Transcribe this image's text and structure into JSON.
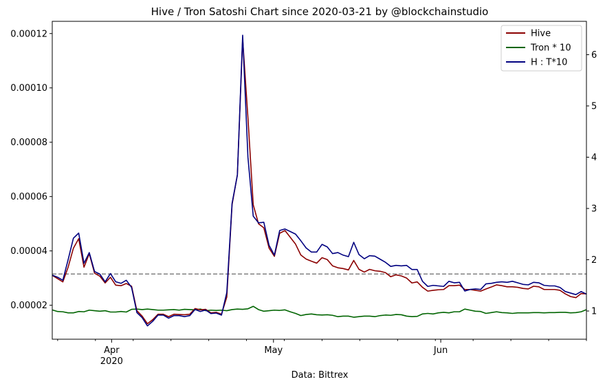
{
  "chart_data": {
    "type": "line",
    "title": "Hive / Tron Satoshi Chart since 2020-03-21 by @blockchainstudio",
    "xlabel": "Data: Bittrex",
    "x_start": "2020-03-21",
    "x_end": "2020-06-28",
    "x_ticks": [
      {
        "date": "2020-04-01",
        "label": "Apr",
        "sublabel": "2020"
      },
      {
        "date": "2020-05-01",
        "label": "May",
        "sublabel": ""
      },
      {
        "date": "2020-06-01",
        "label": "Jun",
        "sublabel": ""
      }
    ],
    "left_axis": {
      "ylim": [
        7.5e-06,
        0.0001245
      ],
      "ticks": [
        2e-05,
        4e-05,
        6e-05,
        8e-05,
        0.0001,
        0.00012
      ],
      "tick_labels": [
        "0.00002",
        "0.00004",
        "0.00006",
        "0.00008",
        "0.00010",
        "0.00012"
      ]
    },
    "right_axis": {
      "ylim": [
        0.45,
        6.65
      ],
      "ticks": [
        1,
        2,
        3,
        4,
        5,
        6
      ],
      "tick_labels": [
        "1",
        "2",
        "3",
        "4",
        "5",
        "6"
      ]
    },
    "reference_line": {
      "axis": "left",
      "value": 3.15e-05,
      "color": "#808080",
      "style": "dashed"
    },
    "legend": {
      "placement": "top-right",
      "entries": [
        "Hive",
        "Tron * 10",
        "H : T*10"
      ]
    },
    "series": [
      {
        "name": "Hive",
        "axis": "left",
        "color": "#8b0000",
        "values": [
          3.1e-05,
          2.98e-05,
          2.86e-05,
          3.4e-05,
          4.1e-05,
          4.45e-05,
          3.4e-05,
          3.9e-05,
          3.18e-05,
          3.07e-05,
          2.82e-05,
          3.03e-05,
          2.74e-05,
          2.72e-05,
          2.8e-05,
          2.7e-05,
          1.8e-05,
          1.6e-05,
          1.32e-05,
          1.47e-05,
          1.67e-05,
          1.67e-05,
          1.58e-05,
          1.67e-05,
          1.66e-05,
          1.65e-05,
          1.67e-05,
          1.88e-05,
          1.83e-05,
          1.85e-05,
          1.72e-05,
          1.74e-05,
          1.67e-05,
          2.3e-05,
          5.7e-05,
          6.8e-05,
          0.000118,
          8.9e-05,
          5.7e-05,
          5e-05,
          4.85e-05,
          4.1e-05,
          3.8e-05,
          4.65e-05,
          4.75e-05,
          4.5e-05,
          4.25e-05,
          3.85e-05,
          3.7e-05,
          3.62e-05,
          3.55e-05,
          3.75e-05,
          3.68e-05,
          3.45e-05,
          3.38e-05,
          3.35e-05,
          3.3e-05,
          3.65e-05,
          3.32e-05,
          3.22e-05,
          3.32e-05,
          3.27e-05,
          3.25e-05,
          3.2e-05,
          3.05e-05,
          3.12e-05,
          3.08e-05,
          3e-05,
          2.82e-05,
          2.86e-05,
          2.66e-05,
          2.52e-05,
          2.55e-05,
          2.57e-05,
          2.58e-05,
          2.72e-05,
          2.72e-05,
          2.74e-05,
          2.58e-05,
          2.58e-05,
          2.55e-05,
          2.52e-05,
          2.6e-05,
          2.67e-05,
          2.75e-05,
          2.72e-05,
          2.68e-05,
          2.68e-05,
          2.66e-05,
          2.62e-05,
          2.6e-05,
          2.7e-05,
          2.68e-05,
          2.58e-05,
          2.58e-05,
          2.58e-05,
          2.55e-05,
          2.42e-05,
          2.32e-05,
          2.28e-05,
          2.43e-05,
          2.42e-05
        ]
      },
      {
        "name": "Tron * 10",
        "axis": "left",
        "color": "#006400",
        "values": [
          1.83e-05,
          1.77e-05,
          1.76e-05,
          1.72e-05,
          1.72e-05,
          1.77e-05,
          1.76e-05,
          1.82e-05,
          1.8e-05,
          1.78e-05,
          1.8e-05,
          1.75e-05,
          1.75e-05,
          1.77e-05,
          1.75e-05,
          1.85e-05,
          1.86e-05,
          1.84e-05,
          1.86e-05,
          1.84e-05,
          1.82e-05,
          1.82e-05,
          1.83e-05,
          1.84e-05,
          1.82e-05,
          1.85e-05,
          1.84e-05,
          1.83e-05,
          1.86e-05,
          1.8e-05,
          1.82e-05,
          1.81e-05,
          1.82e-05,
          1.8e-05,
          1.84e-05,
          1.86e-05,
          1.85e-05,
          1.87e-05,
          1.96e-05,
          1.84e-05,
          1.78e-05,
          1.8e-05,
          1.82e-05,
          1.81e-05,
          1.83e-05,
          1.76e-05,
          1.7e-05,
          1.62e-05,
          1.66e-05,
          1.68e-05,
          1.65e-05,
          1.64e-05,
          1.65e-05,
          1.63e-05,
          1.58e-05,
          1.6e-05,
          1.6e-05,
          1.56e-05,
          1.58e-05,
          1.6e-05,
          1.6e-05,
          1.58e-05,
          1.62e-05,
          1.64e-05,
          1.63e-05,
          1.66e-05,
          1.65e-05,
          1.6e-05,
          1.58e-05,
          1.59e-05,
          1.68e-05,
          1.7e-05,
          1.68e-05,
          1.72e-05,
          1.74e-05,
          1.72e-05,
          1.76e-05,
          1.76e-05,
          1.86e-05,
          1.82e-05,
          1.78e-05,
          1.77e-05,
          1.7e-05,
          1.73e-05,
          1.76e-05,
          1.73e-05,
          1.72e-05,
          1.7e-05,
          1.72e-05,
          1.72e-05,
          1.72e-05,
          1.73e-05,
          1.73e-05,
          1.72e-05,
          1.73e-05,
          1.73e-05,
          1.74e-05,
          1.74e-05,
          1.72e-05,
          1.73e-05,
          1.76e-05,
          1.84e-05
        ]
      },
      {
        "name": "H : T*10",
        "axis": "right",
        "color": "#000080",
        "values": [
          1.7,
          1.66,
          1.6,
          2.0,
          2.42,
          2.52,
          1.93,
          2.14,
          1.77,
          1.72,
          1.57,
          1.73,
          1.57,
          1.54,
          1.6,
          1.46,
          0.97,
          0.87,
          0.71,
          0.8,
          0.92,
          0.92,
          0.86,
          0.91,
          0.91,
          0.89,
          0.91,
          1.03,
          0.99,
          1.02,
          0.95,
          0.96,
          0.92,
          1.36,
          3.1,
          3.65,
          6.38,
          4.0,
          2.85,
          2.72,
          2.73,
          2.28,
          2.09,
          2.57,
          2.6,
          2.55,
          2.5,
          2.37,
          2.23,
          2.15,
          2.15,
          2.3,
          2.25,
          2.12,
          2.14,
          2.09,
          2.06,
          2.34,
          2.1,
          2.02,
          2.08,
          2.07,
          2.01,
          1.95,
          1.87,
          1.89,
          1.88,
          1.89,
          1.81,
          1.81,
          1.58,
          1.48,
          1.5,
          1.49,
          1.48,
          1.58,
          1.55,
          1.56,
          1.39,
          1.42,
          1.43,
          1.42,
          1.53,
          1.54,
          1.56,
          1.57,
          1.56,
          1.58,
          1.55,
          1.52,
          1.51,
          1.56,
          1.55,
          1.5,
          1.49,
          1.49,
          1.46,
          1.38,
          1.35,
          1.32,
          1.38,
          1.33
        ]
      }
    ]
  }
}
